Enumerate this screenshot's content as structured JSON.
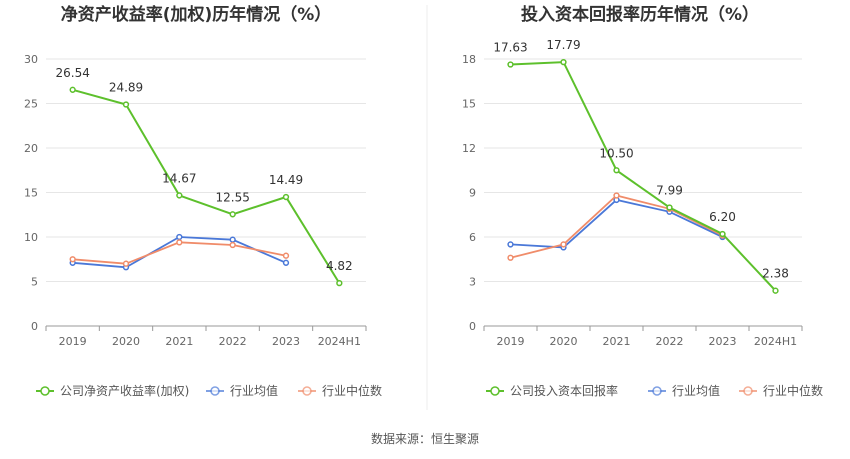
{
  "source": "数据来源：恒生聚源",
  "colors": {
    "company": "#5dc02c",
    "industry_avg": "#4a78d8",
    "industry_median": "#f08c6a",
    "grid": "#e6e6e6",
    "axis": "#999999",
    "divider": "#eeeeee"
  },
  "chart_data": [
    {
      "type": "line",
      "title": "净资产收益率(加权)历年情况（%）",
      "categories": [
        "2019",
        "2020",
        "2021",
        "2022",
        "2023",
        "2024H1"
      ],
      "ylim": [
        0,
        30
      ],
      "yticks": [
        0,
        5,
        10,
        15,
        20,
        25,
        30
      ],
      "grid": true,
      "legend_position": "bottom",
      "series": [
        {
          "name": "公司净资产收益率(加权)",
          "key": "company",
          "values": [
            26.54,
            24.89,
            14.67,
            12.55,
            14.49,
            4.82
          ],
          "labels": [
            "26.54",
            "24.89",
            "14.67",
            "12.55",
            "14.49",
            "4.82"
          ]
        },
        {
          "name": "行业均值",
          "key": "industry_avg",
          "values": [
            7.1,
            6.6,
            10.0,
            9.7,
            7.1,
            null
          ]
        },
        {
          "name": "行业中位数",
          "key": "industry_median",
          "values": [
            7.5,
            7.0,
            9.4,
            9.1,
            7.9,
            null
          ]
        }
      ]
    },
    {
      "type": "line",
      "title": "投入资本回报率历年情况（%）",
      "categories": [
        "2019",
        "2020",
        "2021",
        "2022",
        "2023",
        "2024H1"
      ],
      "ylim": [
        0,
        18
      ],
      "yticks": [
        0,
        3,
        6,
        9,
        12,
        15,
        18
      ],
      "grid": true,
      "legend_position": "bottom",
      "series": [
        {
          "name": "公司投入资本回报率",
          "key": "company",
          "values": [
            17.63,
            17.79,
            10.5,
            7.99,
            6.2,
            2.38
          ],
          "labels": [
            "17.63",
            "17.79",
            "10.50",
            "7.99",
            "6.20",
            "2.38"
          ]
        },
        {
          "name": "行业均值",
          "key": "industry_avg",
          "values": [
            5.5,
            5.3,
            8.5,
            7.7,
            6.0,
            null
          ]
        },
        {
          "name": "行业中位数",
          "key": "industry_median",
          "values": [
            4.6,
            5.5,
            8.8,
            7.9,
            6.1,
            null
          ]
        }
      ]
    }
  ]
}
